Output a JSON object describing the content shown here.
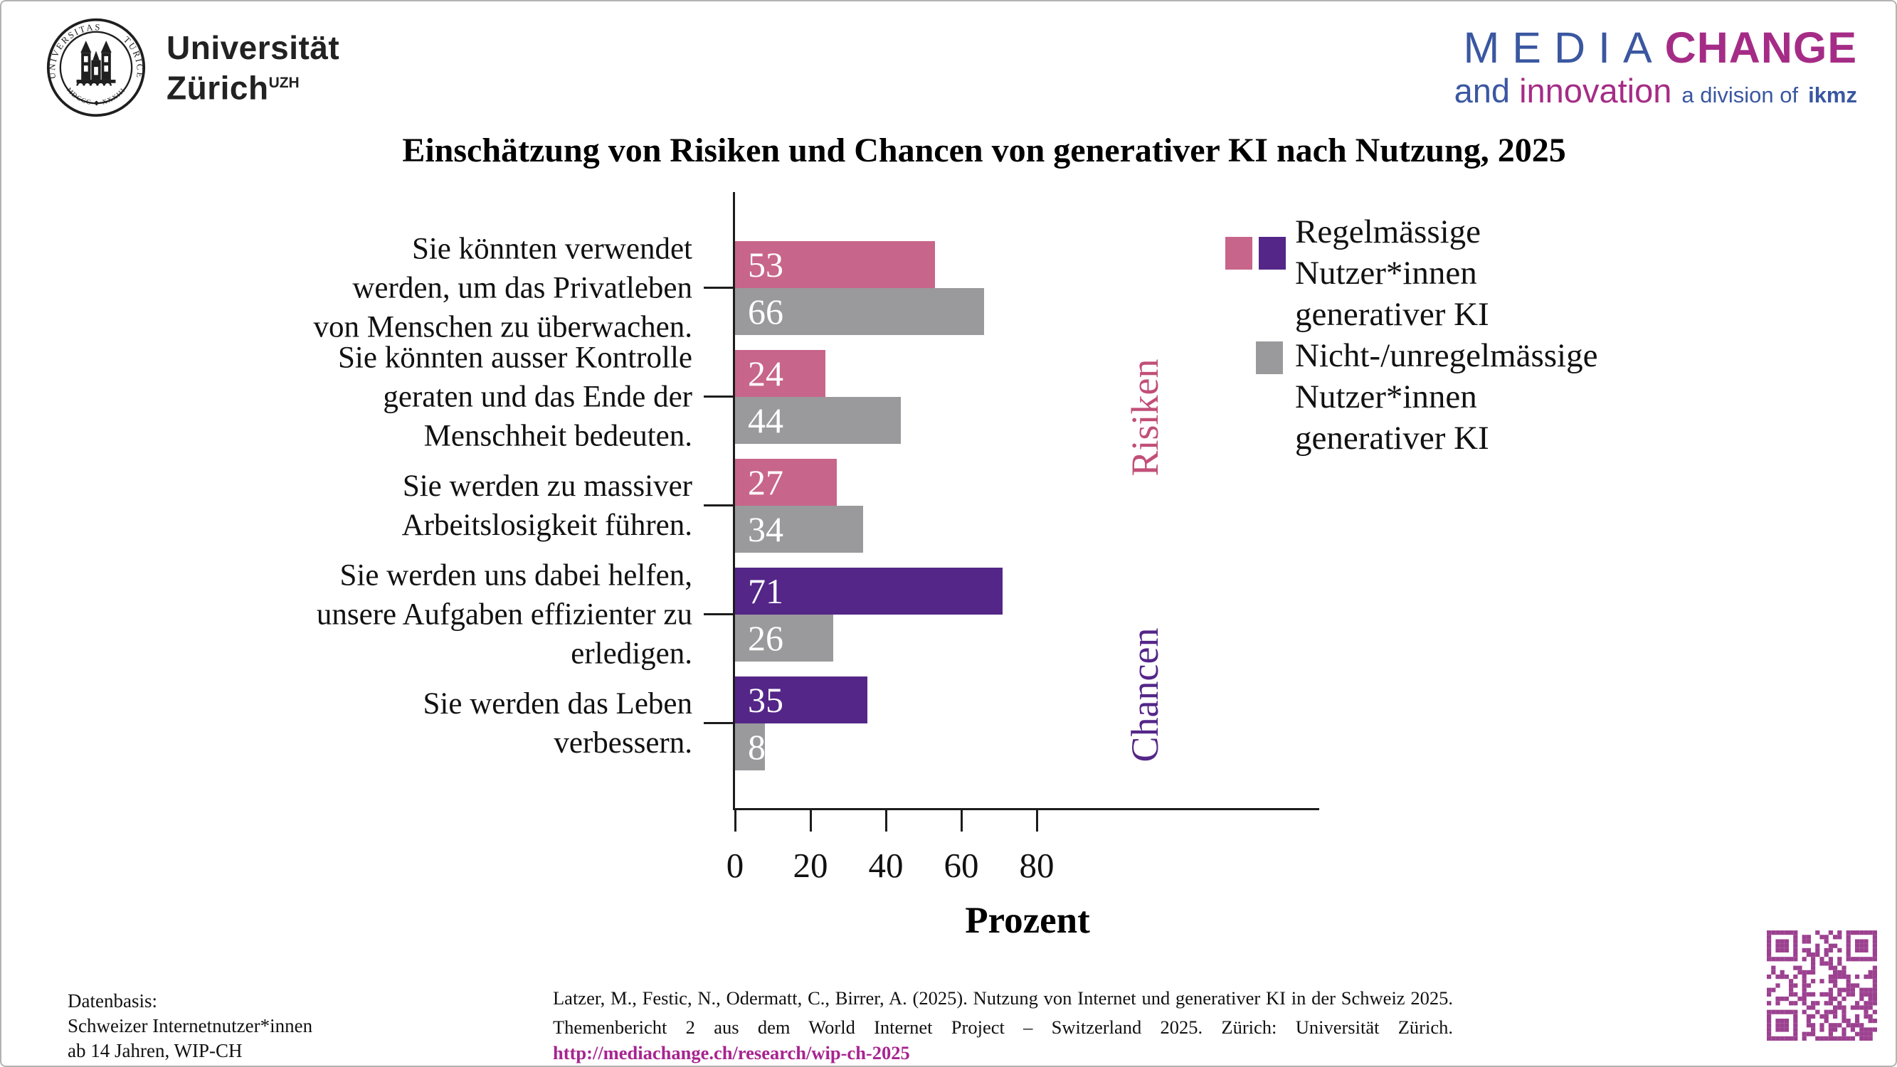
{
  "page": {
    "background": "#ffffff",
    "border_color": "#b3b3b3"
  },
  "branding": {
    "uzh": {
      "wordmark_line1": "Universität",
      "wordmark_line2": "Zürich",
      "wordmark_superscript": "UZH",
      "seal_text_arc": "UNIVERSITAS  TURICENSIS",
      "seal_text_bottom": "MDCCC XXXIII"
    },
    "mediachange": {
      "word_media": "MEDIA",
      "word_change": "CHANGE",
      "word_and": "and",
      "word_innovation": "innovation",
      "word_division": "a division of",
      "word_ikmz": "ikmz",
      "blue": "#3A57A0",
      "magenta": "#A52C86"
    }
  },
  "title": "Einschätzung von Risiken und Chancen von generativer KI nach Nutzung, 2025",
  "chart_data": {
    "type": "bar",
    "orientation": "horizontal",
    "xlabel": "Prozent",
    "x_ticks": [
      0,
      20,
      40,
      60,
      80
    ],
    "xlim": [
      0,
      155
    ],
    "grid": false,
    "legend_position": "upper right",
    "categories": [
      "Sie könnten verwendet\nwerden, um das Privatleben\nvon Menschen zu überwachen.",
      "Sie könnten ausser Kontrolle\ngeraten und das Ende der\nMenschheit bedeuten.",
      "Sie werden zu massiver\nArbeitslosigkeit führen.",
      "Sie werden uns dabei helfen,\nunsere Aufgaben effizienter zu\nerledigen.",
      "Sie werden das Leben\nverbessern."
    ],
    "series": [
      {
        "name": "Regelmässige Nutzer*innen generativer KI",
        "values": [
          53,
          24,
          27,
          71,
          35
        ],
        "bar_colors": [
          "#C8658A",
          "#C8658A",
          "#C8658A",
          "#542688",
          "#542688"
        ]
      },
      {
        "name": "Nicht-/unregelmässige Nutzer*innen generativer KI",
        "values": [
          66,
          44,
          34,
          26,
          8
        ],
        "bar_colors": [
          "#9A999B",
          "#9A999B",
          "#9A999B",
          "#9A999B",
          "#9A999B"
        ]
      }
    ],
    "value_label_color": "#ffffff",
    "axis_color": "#1c1c1c",
    "section_labels": [
      {
        "text": "Risiken",
        "color": "#C14F78",
        "covers_categories": [
          0,
          1,
          2
        ]
      },
      {
        "text": "Chancen",
        "color": "#542688",
        "covers_categories": [
          3,
          4
        ]
      }
    ],
    "legend": {
      "items": [
        {
          "label": "Regelmässige\nNutzer*innen\ngenerativer KI",
          "swatches": [
            "#C8658A",
            "#542688"
          ]
        },
        {
          "label": "Nicht-/unregelmässige\nNutzer*innen\ngenerativer KI",
          "swatches": [
            "#9A999B"
          ]
        }
      ]
    }
  },
  "footer": {
    "datenbasis": "Datenbasis:\nSchweizer Internetnutzer*innen\nab 14 Jahren, WIP-CH",
    "citation": "Latzer, M., Festic, N., Odermatt, C., Birrer, A. (2025). Nutzung von Internet und generativer KI in der Schweiz 2025. Themenbericht 2 aus dem World Internet Project – Switzerland 2025. Zürich: Universität Zürich.",
    "link": "http://mediachange.ch/research/wip-ch-2025",
    "link_color": "#A82490",
    "qr_color": "#9C4190"
  }
}
